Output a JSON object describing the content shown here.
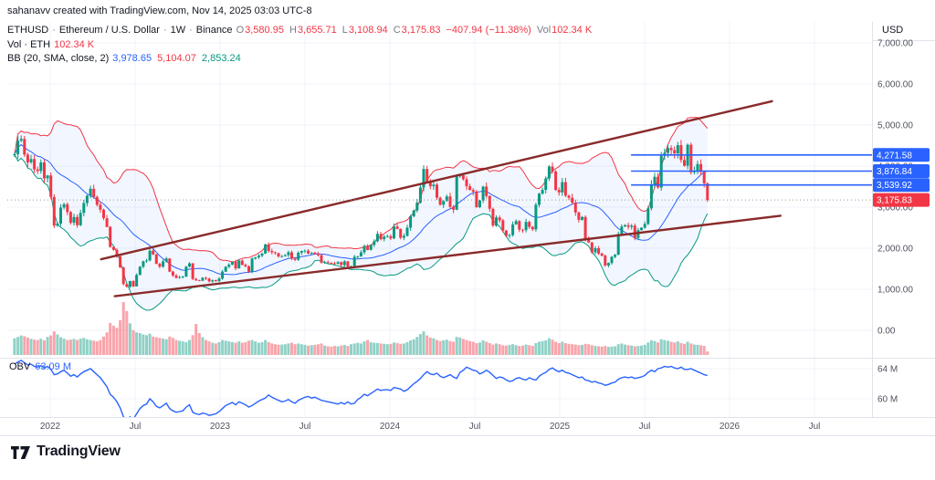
{
  "attribution": "sahanavv created with TradingView.com, Nov 14, 2025 03:03 UTC-8",
  "header": {
    "sep": "·",
    "symbol": {
      "name": "ETHUSD",
      "description": "Ethereum / U.S. Dollar",
      "interval": "1W",
      "exchange": "Binance"
    },
    "ohlc": {
      "o_label": "O",
      "o": "3,580.95",
      "h_label": "H",
      "h": "3,655.71",
      "l_label": "L",
      "l": "3,108.94",
      "c_label": "C",
      "c": "3,175.83",
      "change": "−407.94 (−11.38%)",
      "vol_label": "Vol",
      "vol": "102.34 K"
    },
    "vol_line": {
      "label": "Vol · ETH",
      "value": "102.34 K"
    },
    "bb_line": {
      "label": "BB (20, SMA, close, 2)",
      "basis": "3,978.65",
      "upper": "5,104.07",
      "lower": "2,853.24"
    }
  },
  "obv_legend": {
    "label": "OBV",
    "value": "63.09 M"
  },
  "axis": {
    "currency": "USD",
    "price_ticks": [
      {
        "label": "7,000.00",
        "value": 7000
      },
      {
        "label": "6,000.00",
        "value": 6000
      },
      {
        "label": "5,000.00",
        "value": 5000
      },
      {
        "label": "4,000.00",
        "value": 4000
      },
      {
        "label": "3,000.00",
        "value": 3000
      },
      {
        "label": "2,000.00",
        "value": 2000
      },
      {
        "label": "1,000.00",
        "value": 1000
      },
      {
        "label": "0.00",
        "value": 0
      }
    ],
    "obv_ticks": [
      {
        "label": "64 M",
        "value": 64
      },
      {
        "label": "60 M",
        "value": 60
      }
    ],
    "time_ticks": [
      {
        "label": "2022",
        "t": 2022
      },
      {
        "label": "Jul",
        "t": 2022.5
      },
      {
        "label": "2023",
        "t": 2023
      },
      {
        "label": "Jul",
        "t": 2023.5
      },
      {
        "label": "2024",
        "t": 2024
      },
      {
        "label": "Jul",
        "t": 2024.5
      },
      {
        "label": "2025",
        "t": 2025
      },
      {
        "label": "Jul",
        "t": 2025.5
      },
      {
        "label": "2026",
        "t": 2026
      },
      {
        "label": "Jul",
        "t": 2026.5
      }
    ]
  },
  "price_labels": [
    {
      "text": "4,271.58",
      "value": 4271.58,
      "color": "#2962ff",
      "line_from_t": 2025.42,
      "dotted_full_width": false
    },
    {
      "text": "3,876.84",
      "value": 3876.84,
      "color": "#2962ff",
      "line_from_t": 2025.42,
      "dotted_full_width": false
    },
    {
      "text": "3,539.92",
      "value": 3539.92,
      "color": "#2962ff",
      "line_from_t": 2025.42,
      "dotted_full_width": false
    },
    {
      "text": "3,175.83",
      "value": 3175.83,
      "color": "#f23645",
      "dotted_full_width": true
    }
  ],
  "trend_lines": [
    {
      "t1": 2022.3,
      "p1": 1730,
      "t2": 2026.25,
      "p2": 5580,
      "color": "#8a2a2a",
      "width": 2.4
    },
    {
      "t1": 2022.38,
      "p1": 830,
      "t2": 2026.3,
      "p2": 2790,
      "color": "#8a2a2a",
      "width": 2.4
    }
  ],
  "logo": {
    "text": "TradingView"
  },
  "chart_data": {
    "type": "candlestick",
    "symbol": "ETHUSD",
    "interval": "1W",
    "panes": [
      "price+bollinger",
      "volume-overlay",
      "obv"
    ],
    "t_start": 2021.79,
    "t_end": 2025.87,
    "price_ylim": [
      0,
      7500
    ],
    "obv_ylim_visible": [
      59.5,
      65
    ],
    "bb": {
      "period": 20,
      "stddev": 2
    },
    "colors": {
      "up": "#089981",
      "down": "#f23645",
      "bb_basis": "#2962ff",
      "bb_upper": "#f23645",
      "bb_lower": "#089981",
      "obv": "#2962ff",
      "volume_up": "rgba(8,153,129,0.45)",
      "volume_down": "rgba(242,54,69,0.45)"
    },
    "closes": [
      4290,
      4620,
      4660,
      4280,
      4090,
      4170,
      3920,
      3880,
      4090,
      3700,
      3770,
      3250,
      2550,
      2600,
      2990,
      3070,
      2880,
      2620,
      2760,
      2560,
      2860,
      3100,
      3280,
      3450,
      3250,
      3060,
      2940,
      2730,
      2520,
      2030,
      1960,
      1800,
      1530,
      1125,
      1060,
      1200,
      1070,
      1350,
      1550,
      1680,
      1700,
      1940,
      1850,
      1620,
      1550,
      1680,
      1750,
      1430,
      1335,
      1280,
      1295,
      1310,
      1550,
      1630,
      1250,
      1220,
      1210,
      1280,
      1260,
      1190,
      1220,
      1200,
      1260,
      1430,
      1550,
      1600,
      1670,
      1510,
      1700,
      1595,
      1560,
      1430,
      1750,
      1780,
      1820,
      1870,
      2090,
      1930,
      1900,
      1880,
      1800,
      1805,
      1830,
      1900,
      1750,
      1720,
      1890,
      1930,
      1940,
      1870,
      1890,
      1860,
      1830,
      1650,
      1660,
      1640,
      1630,
      1620,
      1660,
      1590,
      1680,
      1550,
      1560,
      1790,
      1800,
      1900,
      2050,
      1960,
      2080,
      2170,
      2350,
      2220,
      2280,
      2290,
      2240,
      2530,
      2470,
      2255,
      2300,
      2500,
      2780,
      2920,
      3110,
      3480,
      3930,
      3600,
      3510,
      3550,
      3230,
      3060,
      3150,
      3260,
      3010,
      2940,
      3750,
      3780,
      3680,
      3510,
      3420,
      3380,
      3000,
      3160,
      3500,
      3270,
      2960,
      2550,
      2750,
      2680,
      2430,
      2300,
      2320,
      2580,
      2660,
      2450,
      2440,
      2640,
      2520,
      2460,
      3060,
      3330,
      3420,
      3700,
      3990,
      3870,
      3420,
      3360,
      3610,
      3280,
      3230,
      3110,
      2870,
      2690,
      2760,
      2230,
      2140,
      1900,
      2000,
      1870,
      1820,
      1580,
      1640,
      1790,
      1840,
      2350,
      2530,
      2560,
      2520,
      2550,
      2250,
      2440,
      2500,
      2590,
      2970,
      3560,
      3740,
      3480,
      4250,
      4320,
      4440,
      4390,
      4310,
      4510,
      4150,
      4010,
      4520,
      3850,
      3880,
      4050,
      3860,
      3580,
      3175.83
    ],
    "volumes_k": [
      480,
      520,
      560,
      540,
      500,
      460,
      440,
      430,
      470,
      420,
      520,
      560,
      680,
      590,
      510,
      470,
      430,
      440,
      460,
      430,
      470,
      490,
      450,
      430,
      410,
      390,
      430,
      530,
      650,
      920,
      840,
      780,
      1000,
      1520,
      1260,
      910,
      710,
      650,
      630,
      590,
      570,
      610,
      530,
      510,
      490,
      470,
      450,
      530,
      490,
      430,
      410,
      390,
      370,
      430,
      570,
      890,
      630,
      510,
      430,
      390,
      350,
      330,
      370,
      430,
      410,
      390,
      370,
      350,
      390,
      350,
      370,
      410,
      430,
      390,
      350,
      370,
      430,
      370,
      330,
      310,
      290,
      300,
      310,
      330,
      350,
      310,
      330,
      310,
      290,
      270,
      280,
      290,
      310,
      330,
      270,
      250,
      240,
      260,
      250,
      270,
      290,
      260,
      310,
      330,
      350,
      330,
      390,
      430,
      370,
      350,
      340,
      330,
      320,
      310,
      320,
      360,
      340,
      320,
      330,
      370,
      420,
      450,
      520,
      600,
      680,
      560,
      500,
      480,
      430,
      400,
      420,
      440,
      400,
      380,
      520,
      500,
      460,
      430,
      400,
      380,
      340,
      360,
      420,
      380,
      340,
      300,
      330,
      310,
      280,
      270,
      290,
      310,
      280,
      260,
      270,
      300,
      280,
      260,
      340,
      380,
      400,
      420,
      480,
      440,
      380,
      340,
      380,
      340,
      320,
      310,
      300,
      280,
      290,
      320,
      310,
      280,
      260,
      250,
      240,
      260,
      230,
      240,
      250,
      310,
      330,
      300,
      280,
      270,
      250,
      260,
      270,
      290,
      360,
      420,
      400,
      360,
      450,
      430,
      410,
      380,
      360,
      390,
      340,
      320,
      380,
      330,
      300,
      290,
      280,
      260,
      102
    ],
    "obv_m": [
      64.6,
      64.9,
      65.1,
      64.8,
      64.5,
      64.6,
      64.3,
      64.2,
      64.4,
      64.1,
      64.3,
      63.9,
      63.2,
      63.3,
      63.6,
      63.8,
      63.4,
      63.0,
      63.2,
      62.9,
      63.3,
      63.6,
      63.8,
      64.0,
      63.6,
      63.2,
      62.8,
      62.2,
      61.6,
      60.6,
      60.2,
      59.6,
      58.8,
      57.6,
      57.2,
      57.6,
      57.3,
      58.0,
      58.7,
      59.1,
      59.3,
      60.0,
      59.6,
      59.0,
      58.8,
      59.1,
      59.4,
      58.7,
      58.4,
      58.2,
      58.3,
      58.4,
      58.9,
      59.2,
      58.2,
      58.0,
      57.9,
      58.1,
      58.0,
      57.8,
      57.9,
      58.0,
      58.3,
      58.7,
      59.1,
      59.3,
      59.5,
      59.2,
      59.6,
      59.4,
      59.2,
      58.9,
      59.1,
      59.4,
      59.7,
      59.9,
      60.1,
      60.5,
      60.2,
      60.0,
      59.8,
      59.6,
      59.7,
      59.9,
      59.6,
      59.4,
      59.8,
      60.0,
      60.2,
      60.3,
      60.1,
      60.2,
      60.0,
      59.8,
      59.7,
      59.6,
      59.5,
      59.4,
      59.3,
      59.5,
      59.3,
      59.6,
      59.3,
      59.4,
      59.9,
      60.2,
      60.6,
      60.4,
      60.7,
      61.0,
      61.3,
      61.1,
      61.2,
      61.2,
      61.1,
      61.5,
      61.4,
      61.3,
      61.0,
      61.2,
      61.6,
      62.0,
      62.3,
      62.7,
      63.2,
      63.6,
      63.3,
      63.2,
      63.4,
      63.0,
      62.8,
      63.0,
      63.2,
      62.9,
      62.7,
      63.5,
      63.8,
      64.2,
      64.0,
      63.8,
      63.7,
      63.3,
      63.5,
      63.8,
      63.5,
      63.1,
      62.7,
      62.9,
      62.8,
      62.5,
      62.3,
      62.4,
      62.7,
      62.8,
      62.6,
      62.5,
      62.8,
      62.6,
      62.5,
      63.0,
      63.3,
      63.5,
      63.9,
      64.1,
      63.8,
      63.6,
      63.8,
      63.5,
      63.4,
      63.2,
      63.0,
      62.8,
      62.9,
      62.5,
      62.4,
      62.2,
      62.3,
      62.1,
      62.0,
      61.8,
      61.9,
      62.1,
      62.2,
      62.6,
      62.8,
      62.9,
      62.8,
      62.9,
      62.7,
      62.8,
      62.9,
      63.1,
      63.5,
      63.8,
      63.6,
      64.0,
      64.1,
      64.3,
      64.2,
      64.3,
      64.1,
      64.0,
      64.2,
      63.9,
      63.9,
      64.0,
      63.8,
      63.6,
      63.4,
      63.2,
      63.09
    ]
  }
}
